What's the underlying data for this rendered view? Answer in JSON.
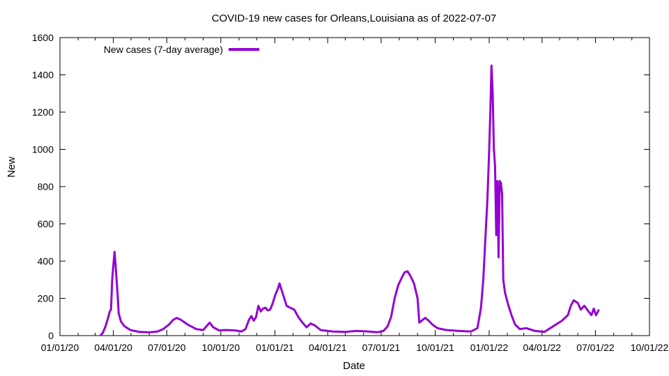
{
  "chart_data": {
    "type": "line",
    "title": "COVID-19 new cases for Orleans,Louisiana as of 2022-07-07",
    "xlabel": "Date",
    "ylabel": "New",
    "xlim": [
      "01/01/20",
      "10/01/22"
    ],
    "ylim": [
      0,
      1600
    ],
    "x_tick_labels": [
      "01/01/20",
      "04/01/20",
      "07/01/20",
      "10/01/20",
      "01/01/21",
      "04/01/21",
      "07/01/21",
      "10/01/21",
      "01/01/22",
      "04/01/22",
      "07/01/22",
      "10/01/22"
    ],
    "y_ticks": [
      0,
      200,
      400,
      600,
      800,
      1000,
      1200,
      1400,
      1600
    ],
    "grid": false,
    "legend": {
      "position": "top-left"
    },
    "series": [
      {
        "name": "New cases (7-day average)",
        "color": "#9400d3",
        "points": [
          [
            "2020-03-10",
            0
          ],
          [
            "2020-03-14",
            15
          ],
          [
            "2020-03-18",
            45
          ],
          [
            "2020-03-22",
            85
          ],
          [
            "2020-03-26",
            130
          ],
          [
            "2020-03-28",
            140
          ],
          [
            "2020-03-30",
            300
          ],
          [
            "2020-04-01",
            380
          ],
          [
            "2020-04-03",
            450
          ],
          [
            "2020-04-05",
            370
          ],
          [
            "2020-04-08",
            230
          ],
          [
            "2020-04-10",
            120
          ],
          [
            "2020-04-14",
            75
          ],
          [
            "2020-04-20",
            50
          ],
          [
            "2020-04-30",
            30
          ],
          [
            "2020-05-15",
            20
          ],
          [
            "2020-06-01",
            18
          ],
          [
            "2020-06-15",
            22
          ],
          [
            "2020-06-25",
            35
          ],
          [
            "2020-07-05",
            60
          ],
          [
            "2020-07-12",
            85
          ],
          [
            "2020-07-18",
            95
          ],
          [
            "2020-07-25",
            85
          ],
          [
            "2020-08-05",
            60
          ],
          [
            "2020-08-20",
            35
          ],
          [
            "2020-09-01",
            30
          ],
          [
            "2020-09-08",
            55
          ],
          [
            "2020-09-12",
            70
          ],
          [
            "2020-09-18",
            45
          ],
          [
            "2020-09-28",
            28
          ],
          [
            "2020-10-10",
            30
          ],
          [
            "2020-10-25",
            28
          ],
          [
            "2020-11-05",
            22
          ],
          [
            "2020-11-12",
            35
          ],
          [
            "2020-11-18",
            85
          ],
          [
            "2020-11-22",
            105
          ],
          [
            "2020-11-26",
            80
          ],
          [
            "2020-11-30",
            100
          ],
          [
            "2020-12-04",
            160
          ],
          [
            "2020-12-08",
            130
          ],
          [
            "2020-12-12",
            145
          ],
          [
            "2020-12-16",
            150
          ],
          [
            "2020-12-20",
            135
          ],
          [
            "2020-12-24",
            140
          ],
          [
            "2020-12-28",
            170
          ],
          [
            "2021-01-02",
            220
          ],
          [
            "2021-01-06",
            250
          ],
          [
            "2021-01-09",
            280
          ],
          [
            "2021-01-13",
            240
          ],
          [
            "2021-01-17",
            200
          ],
          [
            "2021-01-21",
            160
          ],
          [
            "2021-01-27",
            150
          ],
          [
            "2021-02-03",
            140
          ],
          [
            "2021-02-10",
            100
          ],
          [
            "2021-02-17",
            70
          ],
          [
            "2021-02-24",
            45
          ],
          [
            "2021-03-03",
            65
          ],
          [
            "2021-03-10",
            55
          ],
          [
            "2021-03-20",
            30
          ],
          [
            "2021-04-10",
            22
          ],
          [
            "2021-05-01",
            20
          ],
          [
            "2021-05-20",
            25
          ],
          [
            "2021-06-10",
            22
          ],
          [
            "2021-06-25",
            18
          ],
          [
            "2021-07-05",
            25
          ],
          [
            "2021-07-12",
            50
          ],
          [
            "2021-07-18",
            100
          ],
          [
            "2021-07-24",
            200
          ],
          [
            "2021-07-30",
            270
          ],
          [
            "2021-08-05",
            310
          ],
          [
            "2021-08-10",
            340
          ],
          [
            "2021-08-15",
            345
          ],
          [
            "2021-08-20",
            320
          ],
          [
            "2021-08-26",
            280
          ],
          [
            "2021-09-01",
            200
          ],
          [
            "2021-09-04",
            70
          ],
          [
            "2021-09-08",
            80
          ],
          [
            "2021-09-14",
            95
          ],
          [
            "2021-09-20",
            80
          ],
          [
            "2021-09-26",
            60
          ],
          [
            "2021-10-05",
            40
          ],
          [
            "2021-10-20",
            30
          ],
          [
            "2021-11-10",
            25
          ],
          [
            "2021-12-01",
            22
          ],
          [
            "2021-12-12",
            40
          ],
          [
            "2021-12-18",
            150
          ],
          [
            "2021-12-22",
            300
          ],
          [
            "2021-12-26",
            550
          ],
          [
            "2021-12-29",
            730
          ],
          [
            "2022-01-01",
            1000
          ],
          [
            "2022-01-03",
            1200
          ],
          [
            "2022-01-05",
            1450
          ],
          [
            "2022-01-07",
            1300
          ],
          [
            "2022-01-09",
            1000
          ],
          [
            "2022-01-11",
            910
          ],
          [
            "2022-01-13",
            540
          ],
          [
            "2022-01-15",
            830
          ],
          [
            "2022-01-17",
            420
          ],
          [
            "2022-01-19",
            830
          ],
          [
            "2022-01-21",
            820
          ],
          [
            "2022-01-23",
            760
          ],
          [
            "2022-01-25",
            300
          ],
          [
            "2022-01-28",
            230
          ],
          [
            "2022-02-02",
            170
          ],
          [
            "2022-02-08",
            110
          ],
          [
            "2022-02-14",
            60
          ],
          [
            "2022-02-22",
            35
          ],
          [
            "2022-03-05",
            40
          ],
          [
            "2022-03-20",
            25
          ],
          [
            "2022-04-05",
            20
          ],
          [
            "2022-04-15",
            40
          ],
          [
            "2022-04-25",
            60
          ],
          [
            "2022-05-05",
            80
          ],
          [
            "2022-05-15",
            110
          ],
          [
            "2022-05-20",
            160
          ],
          [
            "2022-05-25",
            190
          ],
          [
            "2022-06-01",
            175
          ],
          [
            "2022-06-06",
            140
          ],
          [
            "2022-06-12",
            160
          ],
          [
            "2022-06-18",
            135
          ],
          [
            "2022-06-24",
            110
          ],
          [
            "2022-06-28",
            145
          ],
          [
            "2022-07-02",
            110
          ],
          [
            "2022-07-07",
            140
          ]
        ]
      }
    ]
  }
}
